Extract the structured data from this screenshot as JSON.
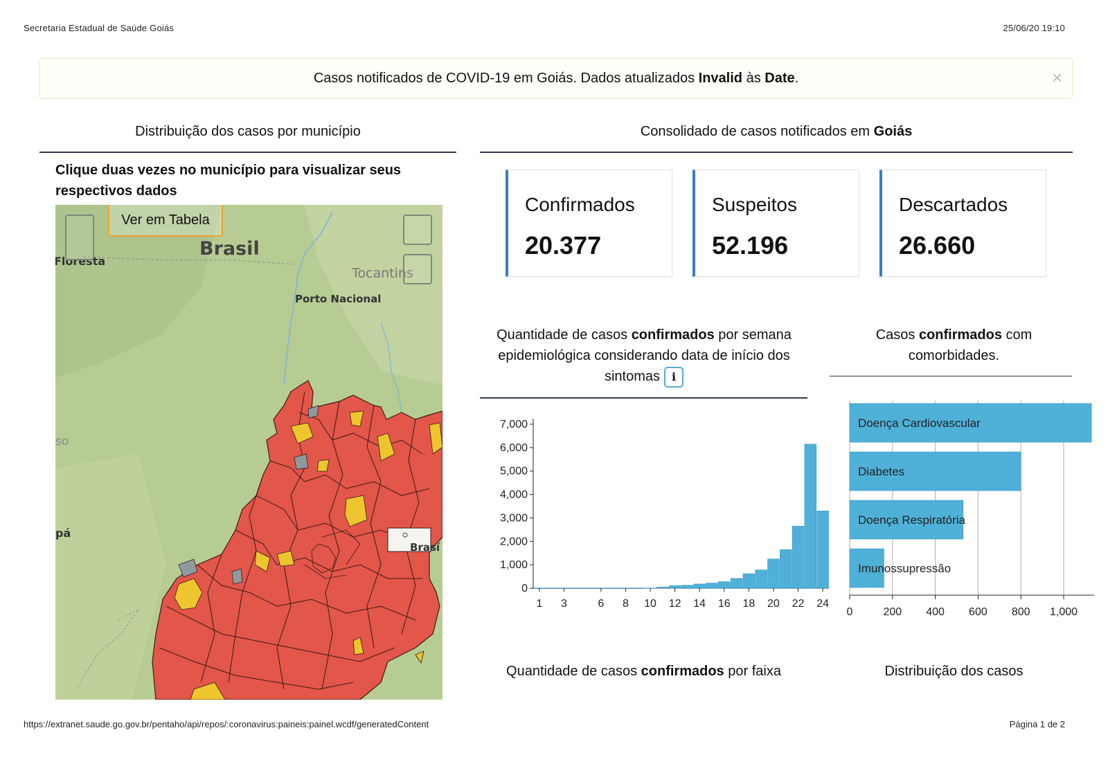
{
  "print_header": {
    "left": "Secretaria Estadual de Saúde Goiás",
    "right": "25/06/20 19:10"
  },
  "alert": {
    "text_before": "Casos notificados de COVID-19 em Goiás. Dados atualizados ",
    "bold1": "Invalid",
    "text_mid": " às ",
    "bold2": "Date",
    "text_end": ".",
    "close_symbol": "×"
  },
  "map_section": {
    "title": "Distribuição dos casos por município",
    "instruction": "Clique duas vezes no município para visualizar seus respectivos dados",
    "button_label": "Ver em Tabela",
    "labels": {
      "brasil": "Brasil",
      "floresta": "Floresta",
      "tocantins": "Tocantins",
      "porto_nacional": "Porto Nacional",
      "so": "so",
      "pa": "pá",
      "brasilia": "Brasí"
    },
    "colors": {
      "red": "#e3564a",
      "yellow": "#eec52e",
      "gray": "#8f9aa0",
      "land": "#b7cc93"
    }
  },
  "consolidated": {
    "title_prefix": "Consolidado de casos notificados em ",
    "title_bold": "Goiás",
    "cards": [
      {
        "label": "Confirmados",
        "value": "20.377"
      },
      {
        "label": "Suspeitos",
        "value": "52.196"
      },
      {
        "label": "Descartados",
        "value": "26.660"
      }
    ]
  },
  "weekly_chart": {
    "title_part1": "Quantidade de casos ",
    "title_bold": "confirmados",
    "title_part2": " por semana epidemiológica considerando data de início dos sintomas",
    "info_symbol": "i"
  },
  "comorbidity_chart": {
    "title_part1": "Casos ",
    "title_bold": "confirmados",
    "title_part2": " com comorbidades."
  },
  "bottom_titles": {
    "left_part1": "Quantidade de casos ",
    "left_bold": "confirmados",
    "left_part2": " por faixa",
    "right": "Distribuição dos casos"
  },
  "print_footer": {
    "url": "https://extranet.saude.go.gov.br/pentaho/api/repos/:coronavirus:paineis:painel.wcdf/generatedContent",
    "page": "Página 1 de 2"
  },
  "chart_data": [
    {
      "type": "bar",
      "title": "Quantidade de casos confirmados por semana epidemiológica considerando data de início dos sintomas",
      "x": [
        1,
        2,
        3,
        4,
        5,
        6,
        7,
        8,
        9,
        10,
        11,
        12,
        13,
        14,
        15,
        16,
        17,
        18,
        19,
        20,
        21,
        22,
        23,
        24
      ],
      "values": [
        0,
        0,
        0,
        0,
        0,
        0,
        0,
        0,
        0,
        10,
        50,
        110,
        130,
        180,
        220,
        280,
        420,
        620,
        780,
        1250,
        1650,
        2650,
        6150,
        3300
      ],
      "x_tick_labels": [
        "1",
        "3",
        "6",
        "8",
        "10",
        "12",
        "14",
        "16",
        "18",
        "20",
        "22",
        "24"
      ],
      "ylim": [
        0,
        7000
      ],
      "y_ticks": [
        "0",
        "1,000",
        "2,000",
        "3,000",
        "4,000",
        "5,000",
        "6,000",
        "7,000"
      ],
      "color": "#4fb0d8"
    },
    {
      "type": "bar",
      "orientation": "horizontal",
      "title": "Casos confirmados com comorbidades.",
      "categories": [
        "Doença Cardiovascular",
        "Diabetes",
        "Doença Respiratória",
        "Imunossupressão"
      ],
      "values": [
        1130,
        800,
        530,
        160
      ],
      "xlim": [
        0,
        1100
      ],
      "x_ticks": [
        "0",
        "200",
        "400",
        "600",
        "800",
        "1,000"
      ],
      "grid": true,
      "color": "#4fb0d8"
    }
  ]
}
